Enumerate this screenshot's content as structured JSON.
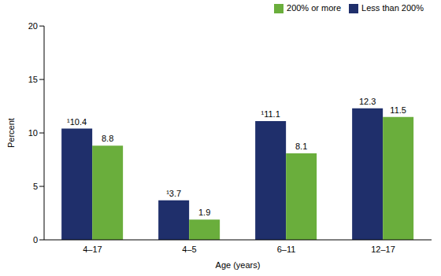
{
  "chart_data": {
    "type": "bar",
    "x_label": "Age (years)",
    "y_label": "Percent",
    "categories": [
      "4–17",
      "4–5",
      "6–11",
      "12–17"
    ],
    "series": [
      {
        "name": "Less than 200%",
        "color": "#1f2f6b",
        "values": [
          10.4,
          3.7,
          11.1,
          12.3
        ],
        "value_labels": [
          "¹10.4",
          "¹3.7",
          "¹11.1",
          "12.3"
        ]
      },
      {
        "name": "200% or more",
        "color": "#6aae3c",
        "values": [
          8.8,
          1.9,
          8.1,
          11.5
        ]
      }
    ],
    "ylim": [
      0,
      20
    ],
    "yticks": [
      0,
      5,
      10,
      15,
      20
    ],
    "grid": false,
    "legend": "upper right",
    "data_labels": true
  }
}
